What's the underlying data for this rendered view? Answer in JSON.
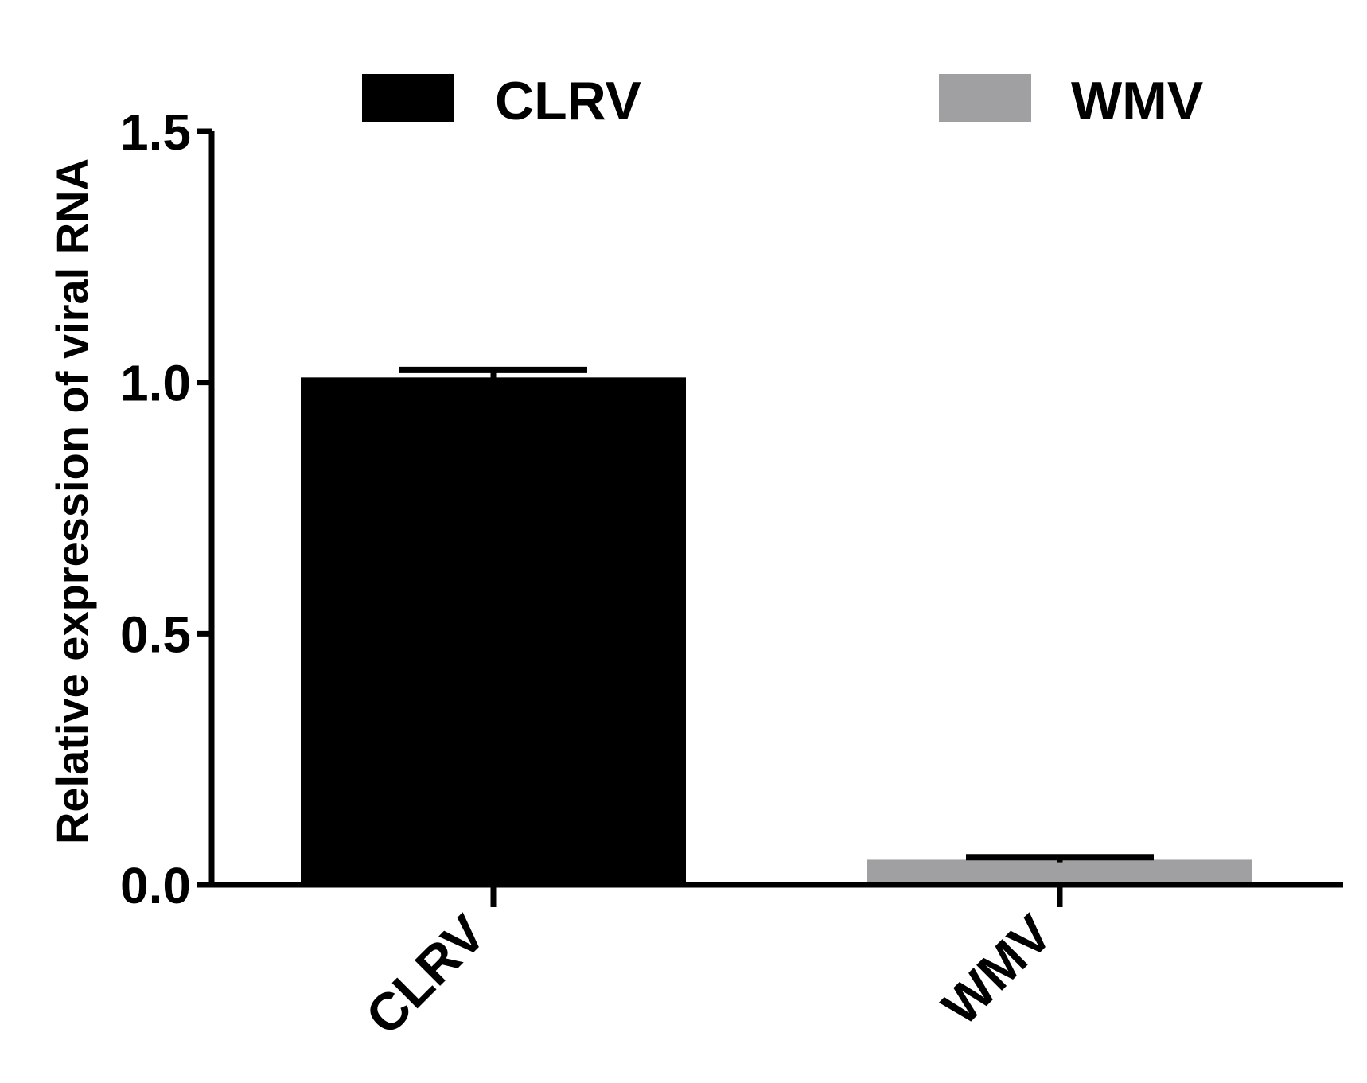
{
  "chart_data": {
    "type": "bar",
    "title": "",
    "xlabel": "",
    "ylabel": "Relative expression of viral RNA",
    "ylim": [
      0,
      1.5
    ],
    "yticks": [
      0.0,
      0.5,
      1.0,
      1.5
    ],
    "ytick_labels": [
      "0.0",
      "0.5",
      "1.0",
      "1.5"
    ],
    "categories": [
      "CLRV",
      "WMV"
    ],
    "values": [
      1.01,
      0.05
    ],
    "error": [
      0.015,
      0.005
    ],
    "colors": [
      "#000000",
      "#a0a0a2"
    ],
    "legend": {
      "position": "top",
      "entries": [
        {
          "label": "CLRV",
          "color": "#000000"
        },
        {
          "label": "WMV",
          "color": "#a0a0a2"
        }
      ]
    },
    "grid": false
  }
}
